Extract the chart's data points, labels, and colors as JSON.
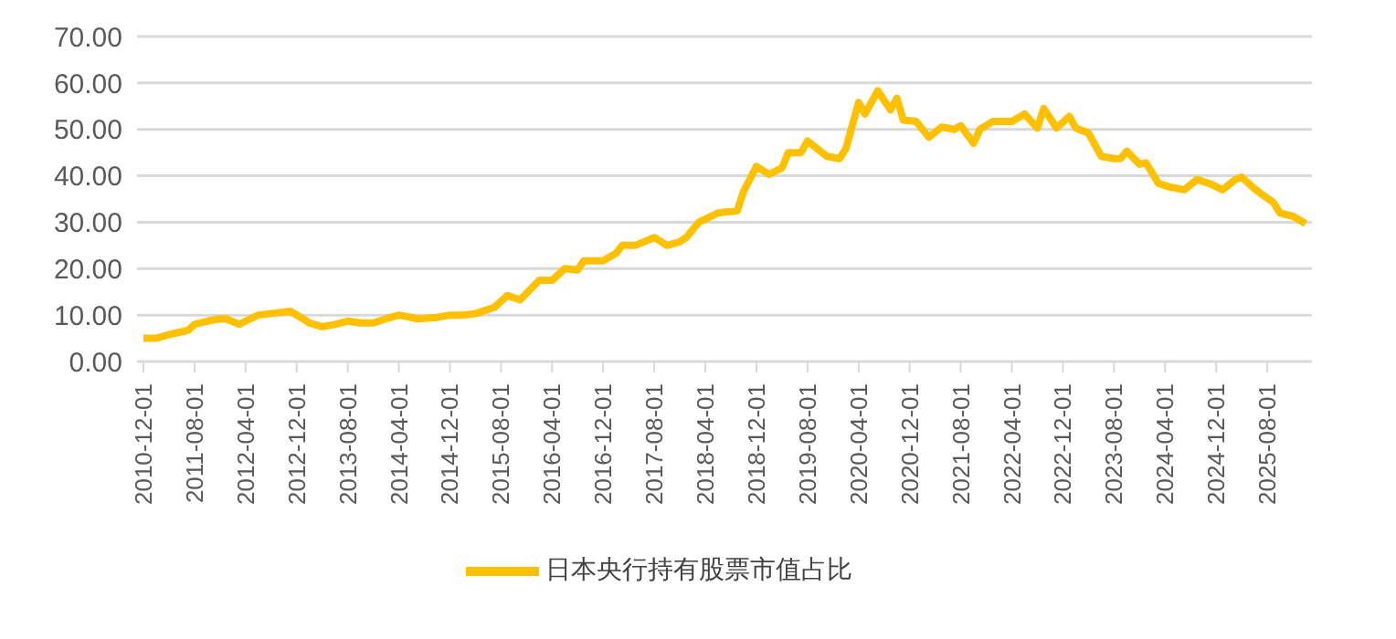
{
  "chart_data": {
    "type": "line",
    "x": [
      "2010-12",
      "2011-02",
      "2011-04",
      "2011-07",
      "2011-08",
      "2011-10",
      "2011-12",
      "2012-01",
      "2012-03",
      "2012-04",
      "2012-06",
      "2012-09",
      "2012-11",
      "2013-01",
      "2013-02",
      "2013-04",
      "2013-06",
      "2013-08",
      "2013-10",
      "2013-12",
      "2014-02",
      "2014-04",
      "2014-07",
      "2014-10",
      "2014-12",
      "2015-02",
      "2015-04",
      "2015-07",
      "2015-09",
      "2015-11",
      "2015-12",
      "2016-02",
      "2016-04",
      "2016-06",
      "2016-08",
      "2016-09",
      "2016-12",
      "2017-02",
      "2017-03",
      "2017-05",
      "2017-08",
      "2017-10",
      "2017-12",
      "2018-01",
      "2018-03",
      "2018-06",
      "2018-09",
      "2018-10",
      "2018-12",
      "2019-02",
      "2019-04",
      "2019-05",
      "2019-07",
      "2019-08",
      "2019-11",
      "2020-01",
      "2020-02",
      "2020-04",
      "2020-05",
      "2020-07",
      "2020-09",
      "2020-10",
      "2020-11",
      "2021-01",
      "2021-03",
      "2021-05",
      "2021-07",
      "2021-08",
      "2021-10",
      "2021-11",
      "2022-01",
      "2022-02",
      "2022-04",
      "2022-05",
      "2022-06",
      "2022-08",
      "2022-09",
      "2022-11",
      "2023-01",
      "2023-02",
      "2023-04",
      "2023-06",
      "2023-08",
      "2023-09",
      "2023-10",
      "2023-12",
      "2024-01",
      "2024-03",
      "2024-05",
      "2024-07",
      "2024-09",
      "2024-11",
      "2025-01",
      "2025-03",
      "2025-04",
      "2025-06",
      "2025-07",
      "2025-09",
      "2025-10",
      "2025-12",
      "2026-02"
    ],
    "series": [
      {
        "name": "日本央行持有股票市值占比",
        "color": "#ffc000",
        "values": [
          5.0,
          5.0,
          5.8,
          6.7,
          8.0,
          8.7,
          9.2,
          9.2,
          8.0,
          8.7,
          10.0,
          10.5,
          10.8,
          9.2,
          8.3,
          7.5,
          8.0,
          8.7,
          8.3,
          8.3,
          9.2,
          10.0,
          9.2,
          9.5,
          10.0,
          10.0,
          10.3,
          11.7,
          14.2,
          13.3,
          14.7,
          17.5,
          17.5,
          20.0,
          19.7,
          21.7,
          21.7,
          23.3,
          25.0,
          25.0,
          26.7,
          25.0,
          25.8,
          26.7,
          30.0,
          32.0,
          32.5,
          36.7,
          42.0,
          40.3,
          41.7,
          45.0,
          45.0,
          47.5,
          44.2,
          43.7,
          45.8,
          55.8,
          53.3,
          58.3,
          54.2,
          56.7,
          52.0,
          51.7,
          48.3,
          50.5,
          50.0,
          50.8,
          47.0,
          50.0,
          51.7,
          51.7,
          51.7,
          52.5,
          53.3,
          50.3,
          54.5,
          50.3,
          52.8,
          50.3,
          49.2,
          44.2,
          43.7,
          43.7,
          45.3,
          42.5,
          42.8,
          38.3,
          37.5,
          37.0,
          39.2,
          38.3,
          37.0,
          39.2,
          39.7,
          37.2,
          36.2,
          34.2,
          32.0,
          31.3,
          29.7
        ]
      }
    ],
    "xlim": [
      "2010-11",
      "2026-03"
    ],
    "xticks": [
      "2010-12-01",
      "2011-08-01",
      "2012-04-01",
      "2012-12-01",
      "2013-08-01",
      "2014-04-01",
      "2014-12-01",
      "2015-08-01",
      "2016-04-01",
      "2016-12-01",
      "2017-08-01",
      "2018-04-01",
      "2018-12-01",
      "2019-08-01",
      "2020-04-01",
      "2020-12-01",
      "2021-08-01",
      "2022-04-01",
      "2022-12-01",
      "2023-08-01",
      "2024-04-01",
      "2024-12-01",
      "2025-08-01"
    ],
    "ylim": [
      0,
      70
    ],
    "yticks": [
      {
        "value": 0,
        "label": "0.00"
      },
      {
        "value": 10,
        "label": "10.00"
      },
      {
        "value": 20,
        "label": "20.00"
      },
      {
        "value": 30,
        "label": "30.00"
      },
      {
        "value": 40,
        "label": "40.00"
      },
      {
        "value": 50,
        "label": "50.00"
      },
      {
        "value": 60,
        "label": "60.00"
      },
      {
        "value": 70,
        "label": "70.00"
      }
    ],
    "grid": "y",
    "legend": "bottom",
    "marker": "none",
    "line_style": "solid"
  }
}
